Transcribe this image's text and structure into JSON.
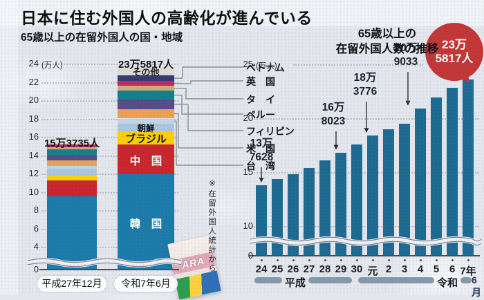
{
  "page": {
    "title": "日本に住む外国人の高齢化が進んでいる",
    "footnote": "※在留外国人統計から",
    "photo_fragment_text": "ARA"
  },
  "colors": {
    "background": "#e3e6ec",
    "right_bar_blue": "#1c6a92",
    "korea_blue": "#1b7aa9",
    "china_red": "#c9252c",
    "brazil_yellow": "#fcd000",
    "chosen_lightblue": "#a9c6e0",
    "taiwan_paleblue": "#c3d4e8",
    "usa_orange": "#e8a159",
    "philippines_purple": "#584b88",
    "peru_teal": "#12808a",
    "thailand_tan": "#d2a977",
    "uk_crimson": "#bc2a62",
    "vietnam_navy": "#373a6e",
    "other_gray": "#dcdcd4",
    "badge_red": "#c23636",
    "era_bar": "#8599ac",
    "connector": "#8a8f99"
  },
  "chart_data": [
    {
      "type": "bar",
      "stacked": true,
      "title": "65歳以上の在留外国人の国・地域",
      "unit_label": "(万人)",
      "ylim": [
        0,
        24
      ],
      "yticks": [
        0,
        4,
        6,
        8,
        10,
        12,
        14,
        16,
        18,
        20,
        22,
        24
      ],
      "axis_break": true,
      "categories": [
        "平成27年12月",
        "令和7年6月"
      ],
      "total_labels": [
        "15万3735人",
        "23万5817人"
      ],
      "totals_persons": [
        153735,
        235817
      ],
      "series": [
        {
          "name": "韓国",
          "display": "韓　国",
          "color_key": "korea_blue",
          "values": [
            9.5,
            11.9
          ],
          "label_in_bar": true
        },
        {
          "name": "中国",
          "display": "中　国",
          "color_key": "china_red",
          "values": [
            1.75,
            3.3
          ],
          "label_in_bar": true
        },
        {
          "name": "ブラジル",
          "display": "ブラジル",
          "color_key": "brazil_yellow",
          "values": [
            0.5,
            1.4
          ],
          "label_in_bar": true
        },
        {
          "name": "朝鮮",
          "display": "朝鮮",
          "color_key": "chosen_lightblue",
          "values": [
            0.8,
            0.85
          ],
          "label_in_bar": true
        },
        {
          "name": "台湾",
          "display": "台　湾",
          "color_key": "taiwan_paleblue",
          "values": [
            0.3,
            0.55
          ],
          "callout": true
        },
        {
          "name": "米国",
          "display": "米　国",
          "color_key": "usa_orange",
          "values": [
            0.55,
            1.05
          ],
          "callout": true
        },
        {
          "name": "フィリピン",
          "display": "フィリピン",
          "color_key": "philippines_purple",
          "values": [
            0.55,
            1.0
          ],
          "callout": true
        },
        {
          "name": "ペルー",
          "display": "ペルー",
          "color_key": "peru_teal",
          "values": [
            0.7,
            1.0
          ],
          "callout": true
        },
        {
          "name": "タイ",
          "display": "タ　イ",
          "color_key": "thailand_tan",
          "values": [
            0.22,
            0.5
          ],
          "callout": true
        },
        {
          "name": "英国",
          "display": "英　国",
          "color_key": "uk_crimson",
          "values": [
            0.3,
            0.55
          ],
          "callout": true
        },
        {
          "name": "ベトナム",
          "display": "ベトナム",
          "color_key": "vietnam_navy",
          "values": [
            0.0,
            0.6
          ],
          "callout": true
        },
        {
          "name": "その他",
          "display": "その他",
          "color_key": "other_gray",
          "values": [
            0.2,
            0.88
          ],
          "label_in_bar": true
        }
      ]
    },
    {
      "type": "bar",
      "title": "65歳以上の在留外国人数の推移",
      "title_lines": [
        "65歳以上の",
        "在留外国人数の推移"
      ],
      "unit_label": "(万人)",
      "ylim": [
        0,
        25
      ],
      "yticks": [
        0,
        10,
        15,
        20,
        25
      ],
      "axis_break": true,
      "categories": [
        "24",
        "25",
        "26",
        "27",
        "28",
        "29",
        "30",
        "元",
        "2",
        "3",
        "4",
        "5",
        "6",
        "7年"
      ],
      "values": [
        13.7628,
        14.34,
        14.82,
        15.3735,
        16.08,
        16.8023,
        17.55,
        18.3776,
        18.95,
        19.45,
        20.9033,
        21.9,
        22.8,
        23.5817
      ],
      "era_groups": [
        {
          "label": "平成",
          "start": "24",
          "end": "30"
        },
        {
          "label": "令和",
          "start": "元",
          "end": "7年"
        }
      ],
      "month_label": "6月",
      "annotations": [
        {
          "index": 0,
          "label_lines": [
            "13万",
            "7628"
          ]
        },
        {
          "index": 5,
          "label_lines": [
            "16万",
            "8023"
          ]
        },
        {
          "index": 7,
          "label_lines": [
            "18万",
            "3776"
          ]
        },
        {
          "index": 10,
          "label_lines": [
            "20万",
            "9033"
          ]
        },
        {
          "index": 13,
          "label_lines": [
            "23万",
            "5817人"
          ],
          "style": "badge"
        }
      ]
    }
  ]
}
